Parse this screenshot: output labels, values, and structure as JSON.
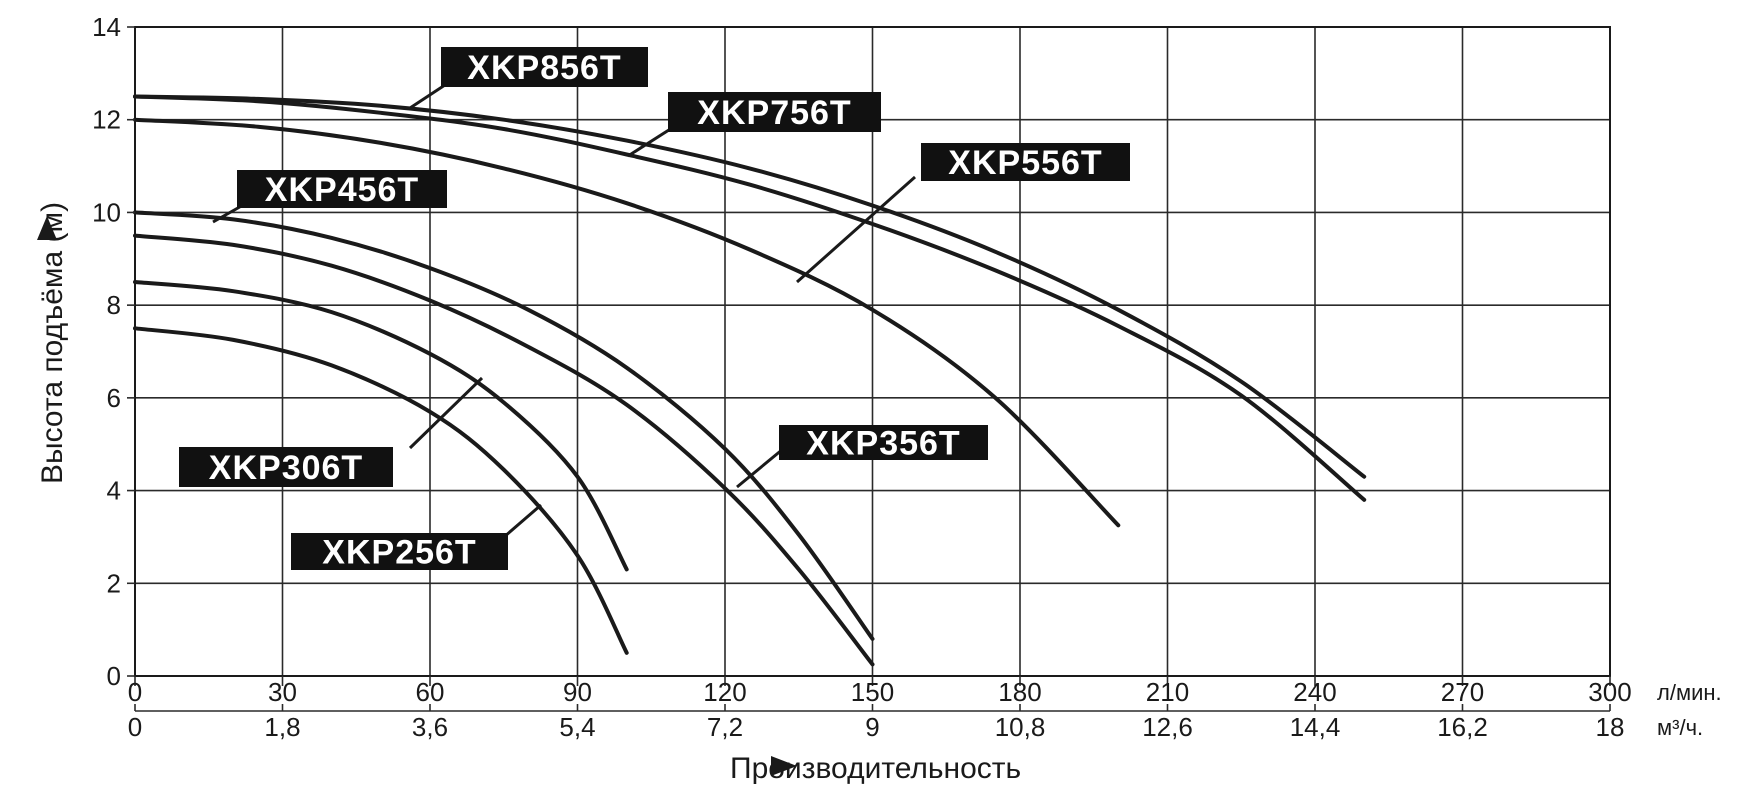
{
  "chart_data": {
    "type": "line",
    "ylabel": "Высота подъёма (м)",
    "xlabel": "Производительность",
    "ylim": [
      0,
      14
    ],
    "xlim": [
      0,
      300
    ],
    "grid": true,
    "y_ticks": [
      "0",
      "2",
      "4",
      "6",
      "8",
      "10",
      "12",
      "14"
    ],
    "x_ticks_primary": [
      "0",
      "30",
      "60",
      "90",
      "120",
      "150",
      "180",
      "210",
      "240",
      "270",
      "300"
    ],
    "x_ticks_secondary": [
      "0",
      "1,8",
      "3,6",
      "5,4",
      "7,2",
      "9",
      "10,8",
      "12,6",
      "14,4",
      "16,2",
      "18"
    ],
    "unit_primary": "л/мин.",
    "unit_secondary": "м³/ч.",
    "series": [
      {
        "name": "XKP856T",
        "x": [
          0,
          25,
          50,
          75,
          100,
          125,
          150,
          175,
          200,
          225,
          250
        ],
        "y": [
          12.5,
          12.45,
          12.3,
          12.0,
          11.55,
          10.95,
          10.15,
          9.15,
          7.9,
          6.35,
          4.3
        ]
      },
      {
        "name": "XKP756T",
        "x": [
          0,
          25,
          50,
          75,
          100,
          125,
          150,
          175,
          200,
          225,
          250
        ],
        "y": [
          12.5,
          12.4,
          12.15,
          11.8,
          11.25,
          10.6,
          9.75,
          8.75,
          7.55,
          6.05,
          3.8
        ]
      },
      {
        "name": "XKP556T",
        "x": [
          0,
          25,
          50,
          75,
          100,
          125,
          150,
          175,
          200
        ],
        "y": [
          12.0,
          11.85,
          11.5,
          10.95,
          10.2,
          9.2,
          7.9,
          6.0,
          3.25
        ]
      },
      {
        "name": "XKP456T",
        "x": [
          0,
          20,
          40,
          60,
          80,
          100,
          120,
          135,
          150
        ],
        "y": [
          10.0,
          9.85,
          9.45,
          8.8,
          7.9,
          6.65,
          4.9,
          3.05,
          0.8
        ]
      },
      {
        "name": "XKP356T",
        "x": [
          0,
          20,
          40,
          60,
          80,
          100,
          120,
          135,
          150
        ],
        "y": [
          9.5,
          9.3,
          8.85,
          8.1,
          7.1,
          5.85,
          4.05,
          2.3,
          0.25
        ]
      },
      {
        "name": "XKP306T",
        "x": [
          0,
          20,
          40,
          60,
          75,
          90,
          100
        ],
        "y": [
          8.5,
          8.3,
          7.85,
          6.95,
          5.9,
          4.3,
          2.3
        ]
      },
      {
        "name": "XKP256T",
        "x": [
          0,
          20,
          40,
          60,
          75,
          90,
          100
        ],
        "y": [
          7.5,
          7.25,
          6.7,
          5.7,
          4.45,
          2.6,
          0.5
        ]
      }
    ],
    "annotations": [
      {
        "text": "XKP856T",
        "points_to": "XKP856T"
      },
      {
        "text": "XKP756T",
        "points_to": "XKP756T"
      },
      {
        "text": "XKP556T",
        "points_to": "XKP556T"
      },
      {
        "text": "XKP456T",
        "points_to": "XKP456T"
      },
      {
        "text": "XKP356T",
        "points_to": "XKP356T"
      },
      {
        "text": "XKP306T",
        "points_to": "XKP306T"
      },
      {
        "text": "XKP256T",
        "points_to": "XKP256T"
      }
    ]
  }
}
